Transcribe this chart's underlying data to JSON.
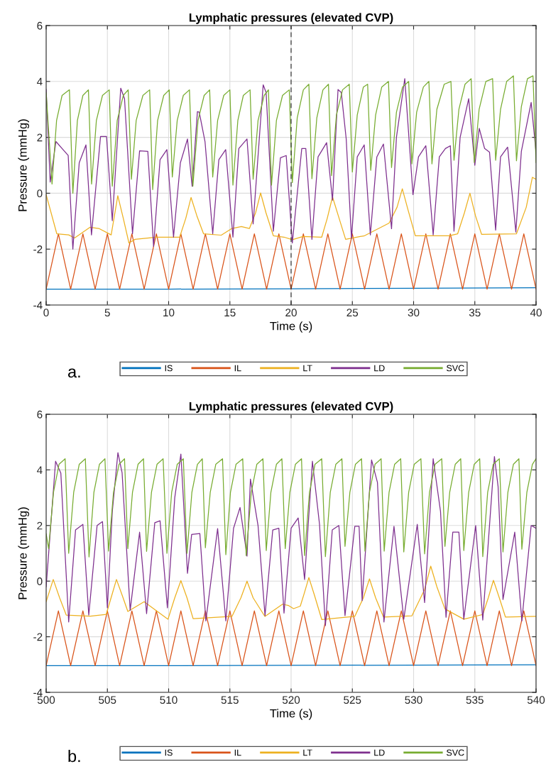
{
  "chart_data": [
    {
      "type": "line",
      "title": "Lymphatic pressures (elevated CVP)",
      "xlabel": "Time (s)",
      "ylabel": "Pressure (mmHg)",
      "xlim": [
        0,
        40
      ],
      "xticks": [
        0,
        5,
        10,
        15,
        20,
        25,
        30,
        35,
        40
      ],
      "ylim": [
        -4,
        6
      ],
      "yticks": [
        -4,
        -2,
        0,
        2,
        4,
        6
      ],
      "grid": true,
      "legend": "bottom",
      "annotations": [
        "a."
      ],
      "ref_lines": [
        {
          "axis": "x",
          "value": 20,
          "color": "#262626",
          "line_style": "dashed"
        }
      ],
      "series": [
        {
          "name": "IS",
          "color": "#0072bd",
          "x": [
            0,
            10,
            20,
            30,
            40
          ],
          "values": [
            -3.43,
            -3.43,
            -3.42,
            -3.4,
            -3.38
          ]
        },
        {
          "name": "IL",
          "color": "#d95319",
          "x": [
            0,
            0.5,
            1,
            1.5,
            2,
            2.5,
            3,
            3.5,
            4,
            4.5,
            5,
            5.5,
            6,
            6.5,
            7,
            7.5,
            8,
            8.5,
            9,
            9.5,
            10,
            10.5,
            11,
            11.5,
            12,
            12.5,
            13,
            13.5,
            14,
            14.5,
            15,
            15.5,
            16,
            16.5,
            17,
            17.5,
            18,
            18.5,
            19,
            19.5,
            20,
            20.5,
            21,
            21.5,
            22,
            22.5,
            23,
            23.5,
            24,
            24.5,
            25,
            25.5,
            26,
            26.5,
            27,
            27.5,
            28,
            28.5,
            29,
            29.5,
            30,
            30.5,
            31,
            31.5,
            32,
            32.5,
            33,
            33.5,
            34,
            34.5,
            35,
            35.5,
            36,
            36.5,
            37,
            37.5,
            38,
            38.5,
            39,
            39.5,
            40
          ],
          "values": [
            -3.43,
            -2.44,
            -1.45,
            -2.44,
            -3.43,
            -2.44,
            -1.45,
            -2.44,
            -3.43,
            -2.44,
            -1.45,
            -2.44,
            -3.43,
            -2.44,
            -1.45,
            -2.44,
            -3.43,
            -2.44,
            -1.45,
            -2.44,
            -3.43,
            -2.44,
            -1.45,
            -2.44,
            -3.43,
            -2.44,
            -1.45,
            -2.44,
            -3.43,
            -2.44,
            -1.45,
            -2.44,
            -3.43,
            -2.44,
            -1.45,
            -2.44,
            -3.43,
            -2.44,
            -1.45,
            -2.44,
            -3.43,
            -2.44,
            -1.45,
            -2.44,
            -3.43,
            -2.44,
            -1.45,
            -2.44,
            -3.43,
            -2.44,
            -1.45,
            -2.44,
            -3.43,
            -2.44,
            -1.45,
            -2.44,
            -3.43,
            -2.44,
            -1.45,
            -2.44,
            -3.43,
            -2.44,
            -1.45,
            -2.44,
            -3.43,
            -2.44,
            -1.45,
            -2.44,
            -3.43,
            -2.44,
            -1.45,
            -2.44,
            -3.43,
            -2.44,
            -1.45,
            -2.44,
            -3.43,
            -2.44,
            -1.45,
            -2.44,
            -3.43
          ]
        },
        {
          "name": "LT",
          "color": "#edb120",
          "x": [
            0,
            0.87,
            1.84,
            2.32,
            3.57,
            4.3,
            5.31,
            5.85,
            6.3,
            6.76,
            7.26,
            9.0,
            10.9,
            11.4,
            11.83,
            12.3,
            12.85,
            14.3,
            15.17,
            15.94,
            16.6,
            17.1,
            17.51,
            17.95,
            18.55,
            19.42,
            20.1,
            20.97,
            22.5,
            22.95,
            23.38,
            23.85,
            24.45,
            26.0,
            28.0,
            28.65,
            29.08,
            29.55,
            30.14,
            32.9,
            33.6,
            34.15,
            34.6,
            35.05,
            35.55,
            38.4,
            39.2,
            39.7,
            40
          ],
          "values": [
            -0.05,
            -1.45,
            -1.49,
            -1.6,
            -1.22,
            -1.26,
            -1.49,
            -0.09,
            -0.9,
            -1.78,
            -1.65,
            -1.57,
            -1.57,
            -0.9,
            -0.15,
            -0.8,
            -1.45,
            -1.5,
            -1.26,
            -1.19,
            -1.26,
            -0.7,
            0.01,
            -0.7,
            -1.52,
            -1.57,
            -1.66,
            -1.55,
            -1.57,
            -0.9,
            -0.13,
            -0.8,
            -1.65,
            -1.52,
            -1.07,
            -0.5,
            0.16,
            -0.6,
            -1.52,
            -1.52,
            -1.45,
            -0.7,
            0.0,
            -0.8,
            -1.47,
            -1.45,
            -0.5,
            0.57,
            0.5
          ]
        },
        {
          "name": "LD",
          "color": "#7e2f8e",
          "x": [
            0,
            0.33,
            0.8,
            1.3,
            1.8,
            2.18,
            2.7,
            3.25,
            3.7,
            4.44,
            4.93,
            5.4,
            6.09,
            6.4,
            7.05,
            7.63,
            8.3,
            8.77,
            9.3,
            9.86,
            10.4,
            10.96,
            11.54,
            11.92,
            12.35,
            12.5,
            12.97,
            13.6,
            14.1,
            14.66,
            15.25,
            15.73,
            16.4,
            16.9,
            17.72,
            17.96,
            18.55,
            19.13,
            19.6,
            20.1,
            20.87,
            21.2,
            21.7,
            22.2,
            22.9,
            23.38,
            23.83,
            24.1,
            24.5,
            24.93,
            25.4,
            25.97,
            26.47,
            27.0,
            27.54,
            28.2,
            28.6,
            29.28,
            29.95,
            30.4,
            31.0,
            31.6,
            32.1,
            32.6,
            33.0,
            33.3,
            33.8,
            34.5,
            35.0,
            35.36,
            35.8,
            36.2,
            36.7,
            37.1,
            37.68,
            38.35,
            38.8,
            39.6,
            40
          ],
          "values": [
            3.71,
            0.4,
            1.85,
            1.6,
            1.35,
            -2.0,
            1.09,
            1.73,
            -1.49,
            2.03,
            2.03,
            -0.98,
            3.76,
            3.38,
            -1.45,
            1.52,
            1.5,
            -1.9,
            1.2,
            1.56,
            -1.57,
            1.09,
            1.94,
            0.25,
            2.92,
            2.9,
            1.85,
            -1.45,
            1.2,
            1.56,
            -1.57,
            1.6,
            1.94,
            -1.1,
            3.88,
            3.6,
            -1.36,
            1.27,
            1.35,
            -1.78,
            1.6,
            1.6,
            -1.65,
            1.3,
            1.81,
            -0.25,
            3.71,
            3.6,
            1.94,
            -1.62,
            1.3,
            1.73,
            -1.49,
            1.3,
            1.76,
            -1.27,
            2.0,
            4.1,
            -0.05,
            1.3,
            1.7,
            -1.49,
            1.3,
            1.6,
            1.7,
            -1.36,
            2.0,
            3.38,
            1.0,
            2.32,
            1.6,
            1.47,
            -1.32,
            1.3,
            1.65,
            -1.39,
            1.5,
            3.25,
            1.45
          ]
        },
        {
          "name": "SVC",
          "color": "#77ac30",
          "x": [
            0,
            0.48,
            0.85,
            1.3,
            1.9,
            2.18,
            2.55,
            3.0,
            3.45,
            3.71,
            4.1,
            4.6,
            5.15,
            5.4,
            5.8,
            6.3,
            6.7,
            6.96,
            7.35,
            7.9,
            8.45,
            8.7,
            9.1,
            9.6,
            10.05,
            10.3,
            10.7,
            11.2,
            11.7,
            11.98,
            12.4,
            12.9,
            13.35,
            13.6,
            14.0,
            14.5,
            15.0,
            15.25,
            15.65,
            16.1,
            16.65,
            16.9,
            17.3,
            17.8,
            18.15,
            18.4,
            18.8,
            19.3,
            19.85,
            20.1,
            20.5,
            21.0,
            21.45,
            21.7,
            22.1,
            22.6,
            23.05,
            23.3,
            23.7,
            24.2,
            24.75,
            25.0,
            25.4,
            25.9,
            26.25,
            26.5,
            26.9,
            27.4,
            27.95,
            28.2,
            28.6,
            29.1,
            29.6,
            29.86,
            30.25,
            30.8,
            31.25,
            31.5,
            31.9,
            32.5,
            33.05,
            33.3,
            33.7,
            34.2,
            34.7,
            34.96,
            35.35,
            35.9,
            36.45,
            36.7,
            37.1,
            37.6,
            38.15,
            38.4,
            38.8,
            39.3,
            39.75,
            40
          ],
          "values": [
            3.6,
            0.33,
            2.6,
            3.5,
            3.7,
            0.0,
            2.6,
            3.5,
            3.7,
            0.33,
            2.6,
            3.5,
            3.7,
            0.25,
            2.6,
            3.5,
            3.7,
            0.5,
            2.6,
            3.5,
            3.7,
            0.13,
            2.6,
            3.5,
            3.7,
            0.58,
            2.6,
            3.5,
            3.7,
            0.25,
            2.6,
            3.5,
            3.7,
            0.58,
            2.6,
            3.5,
            3.7,
            0.29,
            2.6,
            3.5,
            3.7,
            0.5,
            2.6,
            3.5,
            3.7,
            0.29,
            2.6,
            3.5,
            3.7,
            0.38,
            2.7,
            3.7,
            3.9,
            0.52,
            2.7,
            3.7,
            3.9,
            0.63,
            2.8,
            3.7,
            3.9,
            0.76,
            2.8,
            3.8,
            3.9,
            0.82,
            2.8,
            3.8,
            4.0,
            0.92,
            2.9,
            3.8,
            4.0,
            1.05,
            2.9,
            3.8,
            4.0,
            1.05,
            3.0,
            3.9,
            4.0,
            1.18,
            3.0,
            3.9,
            4.1,
            1.1,
            3.0,
            4.0,
            4.1,
            1.18,
            3.0,
            4.0,
            4.2,
            1.16,
            3.1,
            4.1,
            4.2,
            1.1
          ]
        }
      ]
    },
    {
      "type": "line",
      "title": "Lymphatic pressures (elevated CVP)",
      "xlabel": "Time (s)",
      "ylabel": "Pressure (mmHg)",
      "xlim": [
        500,
        540
      ],
      "xticks": [
        500,
        505,
        510,
        515,
        520,
        525,
        530,
        535,
        540
      ],
      "ylim": [
        -4,
        6
      ],
      "yticks": [
        -4,
        -2,
        0,
        2,
        4,
        6
      ],
      "grid": true,
      "legend": "bottom",
      "annotations": [
        "b."
      ],
      "series": [
        {
          "name": "IS",
          "color": "#0072bd",
          "x": [
            500,
            510,
            520,
            530,
            540
          ],
          "values": [
            -3.04,
            -3.04,
            -3.03,
            -3.02,
            -3.01
          ]
        },
        {
          "name": "IL",
          "color": "#d95319",
          "x": [
            500,
            500.5,
            501,
            501.5,
            502,
            502.5,
            503,
            503.5,
            504,
            504.5,
            505,
            505.5,
            506,
            506.5,
            507,
            507.5,
            508,
            508.5,
            509,
            509.5,
            510,
            510.5,
            511,
            511.5,
            512,
            512.5,
            513,
            513.5,
            514,
            514.5,
            515,
            515.5,
            516,
            516.5,
            517,
            517.5,
            518,
            518.5,
            519,
            519.5,
            520,
            520.5,
            521,
            521.5,
            522,
            522.5,
            523,
            523.5,
            524,
            524.5,
            525,
            525.5,
            526,
            526.5,
            527,
            527.5,
            528,
            528.5,
            529,
            529.5,
            530,
            530.5,
            531,
            531.5,
            532,
            532.5,
            533,
            533.5,
            534,
            534.5,
            535,
            535.5,
            536,
            536.5,
            537,
            537.5,
            538,
            538.5,
            539,
            539.5,
            540
          ],
          "values": [
            -3.04,
            -2.05,
            -1.07,
            -2.05,
            -3.04,
            -2.05,
            -1.07,
            -2.05,
            -3.04,
            -2.05,
            -1.07,
            -2.05,
            -3.04,
            -2.05,
            -1.07,
            -2.05,
            -3.04,
            -2.05,
            -1.07,
            -2.05,
            -3.04,
            -2.05,
            -1.07,
            -2.05,
            -3.04,
            -2.05,
            -1.07,
            -2.05,
            -3.04,
            -2.05,
            -1.07,
            -2.05,
            -3.04,
            -2.05,
            -1.07,
            -2.05,
            -3.04,
            -2.05,
            -1.07,
            -2.05,
            -3.04,
            -2.05,
            -1.07,
            -2.05,
            -3.04,
            -2.05,
            -1.07,
            -2.05,
            -3.04,
            -2.05,
            -1.07,
            -2.05,
            -3.04,
            -2.05,
            -1.07,
            -2.05,
            -3.04,
            -2.05,
            -1.07,
            -2.05,
            -3.04,
            -2.05,
            -1.07,
            -2.05,
            -3.04,
            -2.05,
            -1.07,
            -2.05,
            -3.04,
            -2.05,
            -1.07,
            -2.05,
            -3.04,
            -2.05,
            -1.07,
            -2.05,
            -3.04,
            -2.05,
            -1.07,
            -2.05,
            -3.04
          ]
        },
        {
          "name": "LT",
          "color": "#edb120",
          "x": [
            500,
            500.58,
            501.1,
            501.64,
            503.6,
            504.9,
            505.3,
            505.74,
            506.2,
            506.67,
            508.0,
            509.95,
            510.5,
            511.0,
            511.5,
            512.0,
            515.17,
            515.9,
            516.4,
            516.9,
            517.86,
            519.3,
            519.8,
            520.2,
            520.75,
            521.1,
            521.45,
            521.9,
            522.5,
            525.2,
            525.9,
            526.4,
            526.9,
            527.54,
            529.86,
            530.9,
            531.4,
            531.9,
            532.56,
            534.1,
            535.65,
            536.1,
            536.52,
            537.0,
            537.5,
            539.9,
            540
          ],
          "values": [
            -0.74,
            0.06,
            -0.6,
            -1.22,
            -1.26,
            -1.2,
            -0.6,
            0.06,
            -0.5,
            -1.09,
            -0.74,
            -1.37,
            -0.6,
            0.02,
            -0.6,
            -1.35,
            -1.27,
            -0.6,
            0.0,
            -0.6,
            -1.27,
            -0.83,
            -0.88,
            -0.99,
            -0.9,
            -0.4,
            0.13,
            -0.5,
            -1.38,
            -1.27,
            -0.6,
            0.08,
            -0.6,
            -1.29,
            -1.25,
            -0.3,
            0.54,
            -0.2,
            -1.0,
            -1.37,
            -1.2,
            -0.6,
            0.03,
            -0.6,
            -1.29,
            -1.27,
            -1.27
          ]
        },
        {
          "name": "LD",
          "color": "#7e2f8e",
          "x": [
            500,
            500.77,
            501.2,
            501.84,
            502.4,
            503.0,
            503.48,
            504.16,
            504.6,
            505.0,
            505.4,
            505.86,
            506.2,
            506.86,
            507.63,
            508.2,
            508.87,
            509.3,
            509.9,
            510.5,
            511.0,
            511.54,
            511.88,
            512.55,
            513.04,
            514.0,
            514.67,
            515.3,
            515.83,
            516.4,
            516.68,
            517.3,
            517.87,
            518.5,
            519.0,
            519.42,
            520.0,
            520.58,
            521.1,
            521.74,
            522.32,
            522.8,
            523.36,
            523.9,
            524.4,
            525.2,
            525.55,
            525.8,
            526.57,
            527.05,
            527.58,
            528.4,
            529.2,
            530.3,
            530.9,
            531.6,
            532.2,
            532.65,
            533.2,
            533.7,
            534.1,
            535.07,
            535.65,
            536.6,
            536.9,
            537.3,
            538.26,
            538.84,
            539.6,
            540
          ],
          "values": [
            -0.2,
            4.31,
            3.88,
            -1.47,
            1.84,
            2.04,
            -1.22,
            2.0,
            2.14,
            -0.96,
            2.5,
            4.62,
            3.9,
            -1.05,
            1.76,
            -1.17,
            2.1,
            2.17,
            -0.96,
            3.0,
            4.57,
            0.28,
            1.68,
            1.71,
            -1.43,
            1.89,
            -1.43,
            1.9,
            2.65,
            0.9,
            3.67,
            2.0,
            -1.24,
            1.84,
            1.9,
            -1.15,
            1.9,
            2.27,
            0.06,
            4.31,
            2.04,
            -1.6,
            1.84,
            2.0,
            -1.24,
            1.97,
            1.97,
            -0.7,
            4.36,
            3.55,
            -1.47,
            1.97,
            -1.37,
            2.04,
            -0.77,
            4.4,
            2.5,
            -1.3,
            1.76,
            1.76,
            -1.37,
            2.0,
            -1.4,
            4.48,
            3.4,
            -0.66,
            1.76,
            -1.43,
            2.0,
            1.9
          ]
        },
        {
          "name": "SVC",
          "color": "#77ac30",
          "x": [
            500,
            500.2,
            500.6,
            501.05,
            501.55,
            501.84,
            502.25,
            502.7,
            503.2,
            503.5,
            503.9,
            504.35,
            504.8,
            505.1,
            505.5,
            505.95,
            506.4,
            506.67,
            507.05,
            507.5,
            507.95,
            508.2,
            508.6,
            509.05,
            509.55,
            509.86,
            510.25,
            510.7,
            511.2,
            511.5,
            511.9,
            512.35,
            512.75,
            513.0,
            513.4,
            513.85,
            514.4,
            514.67,
            515.05,
            515.5,
            516.05,
            516.33,
            516.75,
            517.2,
            517.7,
            517.97,
            518.35,
            518.8,
            519.25,
            519.52,
            519.9,
            520.35,
            520.85,
            521.1,
            521.5,
            521.95,
            522.5,
            522.8,
            523.2,
            523.65,
            524.15,
            524.4,
            524.8,
            525.25,
            525.75,
            526.03,
            526.4,
            526.85,
            527.35,
            527.6,
            528.0,
            528.45,
            528.95,
            529.2,
            529.6,
            530.05,
            530.6,
            530.9,
            531.3,
            531.75,
            532.3,
            532.56,
            532.95,
            533.4,
            533.85,
            534.1,
            534.5,
            534.95,
            535.4,
            535.65,
            536.05,
            536.5,
            537.0,
            537.3,
            537.7,
            538.15,
            538.6,
            538.84,
            539.25,
            539.7,
            540
          ],
          "values": [
            1.7,
            1.17,
            3.2,
            4.2,
            4.4,
            1.0,
            3.2,
            4.2,
            4.4,
            0.87,
            3.2,
            4.2,
            4.4,
            1.08,
            3.2,
            4.2,
            4.4,
            1.17,
            3.2,
            4.2,
            4.4,
            1.07,
            3.2,
            4.2,
            4.4,
            1.0,
            3.2,
            4.2,
            4.4,
            1.0,
            3.2,
            4.2,
            4.4,
            1.2,
            3.2,
            4.2,
            4.4,
            0.95,
            3.2,
            4.2,
            4.4,
            0.92,
            3.2,
            4.2,
            4.4,
            1.1,
            3.2,
            4.2,
            4.4,
            1.17,
            3.2,
            4.2,
            4.4,
            0.92,
            3.2,
            4.2,
            4.4,
            0.88,
            3.2,
            4.2,
            4.4,
            1.25,
            3.2,
            4.2,
            4.4,
            1.08,
            3.2,
            4.2,
            4.4,
            1.08,
            3.2,
            4.2,
            4.4,
            1.05,
            3.2,
            4.2,
            4.4,
            0.98,
            3.2,
            4.2,
            4.4,
            1.25,
            3.2,
            4.2,
            4.4,
            1.1,
            3.2,
            4.2,
            4.4,
            0.88,
            3.2,
            4.2,
            4.4,
            1.05,
            3.2,
            4.2,
            4.4,
            1.15,
            3.2,
            4.2,
            4.4
          ]
        }
      ]
    }
  ]
}
